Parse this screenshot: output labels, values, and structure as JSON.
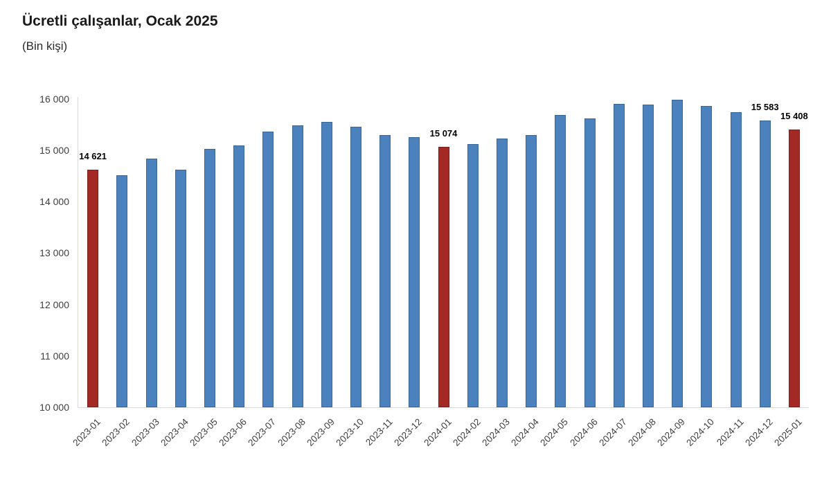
{
  "colors": {
    "bar_default": "#4b82bd",
    "bar_default_border": "#3a6696",
    "bar_highlight": "#a32a24",
    "bar_highlight_border": "#7c1e1a",
    "axis_line": "#d9d9d9",
    "tick_text": "#3e3e3e",
    "annotation_text": "#000000"
  },
  "chart_data": {
    "type": "bar",
    "title": "Ücretli çalışanlar, Ocak 2025",
    "subtitle": "(Bin kişi)",
    "unit": "Bin kişi",
    "categories": [
      "2023-01",
      "2023-02",
      "2023-03",
      "2023-04",
      "2023-05",
      "2023-06",
      "2023-07",
      "2023-08",
      "2023-09",
      "2023-10",
      "2023-11",
      "2023-12",
      "2024-01",
      "2024-02",
      "2024-03",
      "2024-04",
      "2024-05",
      "2024-06",
      "2024-07",
      "2024-08",
      "2024-09",
      "2024-10",
      "2024-11",
      "2024-12",
      "2025-01"
    ],
    "values": [
      14621,
      14520,
      14840,
      14620,
      15030,
      15090,
      15360,
      15480,
      15550,
      15460,
      15300,
      15250,
      15074,
      15120,
      15230,
      15290,
      15690,
      15620,
      15900,
      15890,
      15990,
      15860,
      15740,
      15583,
      15408
    ],
    "highlight_indices": [
      0,
      12,
      24
    ],
    "annotations": [
      {
        "index": 0,
        "text": "14 621"
      },
      {
        "index": 12,
        "text": "15 074"
      },
      {
        "index": 23,
        "text": "15 583"
      },
      {
        "index": 24,
        "text": "15 408"
      }
    ],
    "ylim": [
      10000,
      16000
    ],
    "ytick_step": 1000,
    "ytick_labels": [
      "10 000",
      "11 000",
      "12 000",
      "13 000",
      "14 000",
      "15 000",
      "16 000"
    ],
    "grid": "none",
    "legend": "none",
    "x_label_rotation": -45
  }
}
